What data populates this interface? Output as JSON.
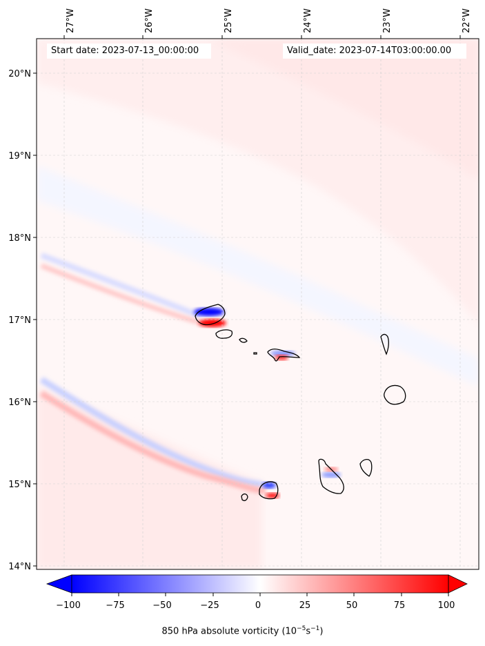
{
  "map": {
    "start_date": "Start date: 2023-07-13_00:00:00",
    "valid_date": "Valid_date: 2023-07-14T03:00:00.00",
    "lon_labels": [
      "27°W",
      "26°W",
      "25°W",
      "24°W",
      "23°W",
      "22°W"
    ],
    "lat_labels": [
      "20°N",
      "19°N",
      "18°N",
      "17°N",
      "16°N",
      "15°N",
      "14°N"
    ],
    "gridlines": true
  },
  "colorbar": {
    "ticks": [
      "−100",
      "−75",
      "−50",
      "−25",
      "0",
      "25",
      "50",
      "75",
      "100"
    ],
    "label_prefix": "850 hPa absolute vorticity (10",
    "label_exp1": "−5",
    "label_mid": "s",
    "label_exp2": "−1",
    "label_suffix": ")",
    "range": [
      -100,
      100
    ],
    "extend": "both",
    "colormap": "bwr"
  },
  "colors": {
    "negative": "#0000ff",
    "positive": "#ff0000",
    "neutral": "#ffffff"
  }
}
